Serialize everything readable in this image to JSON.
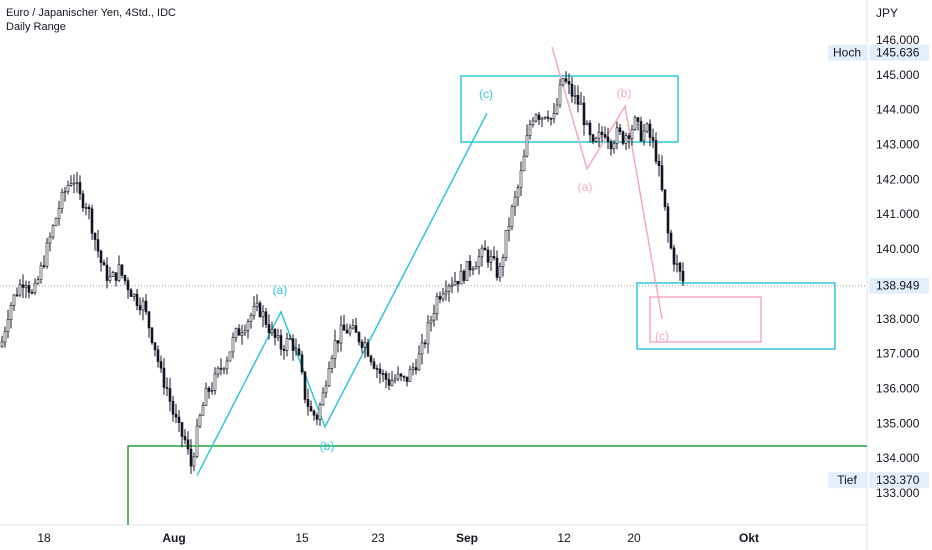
{
  "header": {
    "symbol_title": "Euro / Japanischer Yen, 4Std., IDC",
    "indicator": "Daily Range"
  },
  "colors": {
    "candle": "#131722",
    "cyan": "#2cc7dc",
    "pink": "#f7a8bf",
    "green": "#22a33a",
    "price_line": "#9e9e9e",
    "tag_bg": "#e3eefb"
  },
  "chart_data": {
    "type": "candlestick",
    "y_unit": "JPY",
    "ylim": [
      132.4,
      146.5
    ],
    "y_ticks": [
      133,
      134,
      135,
      136,
      137,
      138,
      139,
      140,
      141,
      142,
      143,
      144,
      145,
      146
    ],
    "y_tick_labels": [
      "133.000",
      "134.000",
      "135.000",
      "136.000",
      "137.000",
      "138.000",
      "139.000",
      "140.000",
      "141.000",
      "142.000",
      "143.000",
      "144.000",
      "145.000",
      "146.000"
    ],
    "x_tick_labels": [
      {
        "label": "18",
        "bold": false,
        "date": "2022-07-18"
      },
      {
        "label": "Aug",
        "bold": true,
        "date": "2022-08-01"
      },
      {
        "label": "15",
        "bold": false,
        "date": "2022-08-15"
      },
      {
        "label": "23",
        "bold": false,
        "date": "2022-08-23"
      },
      {
        "label": "Sep",
        "bold": true,
        "date": "2022-09-01"
      },
      {
        "label": "12",
        "bold": false,
        "date": "2022-09-12"
      },
      {
        "label": "20",
        "bold": false,
        "date": "2022-09-20"
      },
      {
        "label": "Okt",
        "bold": true,
        "date": "2022-10-01"
      }
    ],
    "high_label": "Hoch",
    "high_value": "145.636",
    "low_label": "Tief",
    "low_value": "133.370",
    "last_price": "138.949",
    "daily_range_level": 134.35,
    "close_path": [
      [
        0,
        137.2
      ],
      [
        8,
        138.3
      ],
      [
        16,
        138.8
      ],
      [
        24,
        139.2
      ],
      [
        32,
        138.6
      ],
      [
        40,
        139.4
      ],
      [
        50,
        140.4
      ],
      [
        58,
        141.2
      ],
      [
        66,
        141.8
      ],
      [
        72,
        142.1
      ],
      [
        78,
        141.5
      ],
      [
        86,
        141.3
      ],
      [
        94,
        140.3
      ],
      [
        102,
        139.4
      ],
      [
        110,
        139.1
      ],
      [
        118,
        139.4
      ],
      [
        126,
        139.0
      ],
      [
        134,
        138.6
      ],
      [
        142,
        138.4
      ],
      [
        148,
        137.8
      ],
      [
        154,
        137.2
      ],
      [
        160,
        136.4
      ],
      [
        166,
        136.0
      ],
      [
        172,
        135.3
      ],
      [
        178,
        134.8
      ],
      [
        184,
        134.5
      ],
      [
        190,
        133.8
      ],
      [
        194,
        134.4
      ],
      [
        200,
        135.3
      ],
      [
        206,
        135.9
      ],
      [
        212,
        136.1
      ],
      [
        218,
        136.5
      ],
      [
        226,
        136.9
      ],
      [
        234,
        137.5
      ],
      [
        242,
        137.8
      ],
      [
        250,
        138.1
      ],
      [
        258,
        138.3
      ],
      [
        264,
        138.0
      ],
      [
        272,
        137.5
      ],
      [
        280,
        137.2
      ],
      [
        290,
        137.4
      ],
      [
        298,
        136.8
      ],
      [
        304,
        135.8
      ],
      [
        310,
        135.3
      ],
      [
        316,
        135.2
      ],
      [
        322,
        135.8
      ],
      [
        328,
        136.8
      ],
      [
        334,
        137.3
      ],
      [
        340,
        137.6
      ],
      [
        348,
        137.7
      ],
      [
        356,
        137.5
      ],
      [
        364,
        137.3
      ],
      [
        372,
        136.8
      ],
      [
        380,
        136.4
      ],
      [
        388,
        136.2
      ],
      [
        396,
        136.3
      ],
      [
        404,
        136.2
      ],
      [
        412,
        136.6
      ],
      [
        420,
        137.0
      ],
      [
        428,
        137.8
      ],
      [
        436,
        138.6
      ],
      [
        444,
        139.0
      ],
      [
        452,
        139.1
      ],
      [
        460,
        139.2
      ],
      [
        468,
        139.5
      ],
      [
        476,
        139.7
      ],
      [
        484,
        139.9
      ],
      [
        492,
        139.6
      ],
      [
        498,
        139.2
      ],
      [
        504,
        140.2
      ],
      [
        510,
        141.0
      ],
      [
        516,
        141.6
      ],
      [
        522,
        142.4
      ],
      [
        528,
        143.5
      ],
      [
        534,
        144.0
      ],
      [
        540,
        143.8
      ],
      [
        546,
        144.0
      ],
      [
        552,
        143.6
      ],
      [
        558,
        144.4
      ],
      [
        562,
        144.9
      ],
      [
        568,
        144.6
      ],
      [
        574,
        144.3
      ],
      [
        580,
        144.1
      ],
      [
        586,
        143.4
      ],
      [
        592,
        142.9
      ],
      [
        598,
        143.2
      ],
      [
        604,
        143.4
      ],
      [
        610,
        143.1
      ],
      [
        616,
        143.3
      ],
      [
        622,
        143.2
      ],
      [
        628,
        143.4
      ],
      [
        634,
        143.6
      ],
      [
        640,
        143.3
      ],
      [
        646,
        143.4
      ],
      [
        652,
        143.0
      ],
      [
        656,
        142.6
      ],
      [
        660,
        141.8
      ],
      [
        664,
        141.1
      ],
      [
        668,
        140.2
      ],
      [
        672,
        139.8
      ],
      [
        676,
        139.5
      ],
      [
        680,
        139.2
      ],
      [
        684,
        138.95
      ]
    ],
    "annotations": {
      "cyan_wave_labels": [
        "(a)",
        "(b)",
        "(c)"
      ],
      "pink_wave_labels": [
        "(a)",
        "(b)",
        "(c)"
      ]
    }
  }
}
